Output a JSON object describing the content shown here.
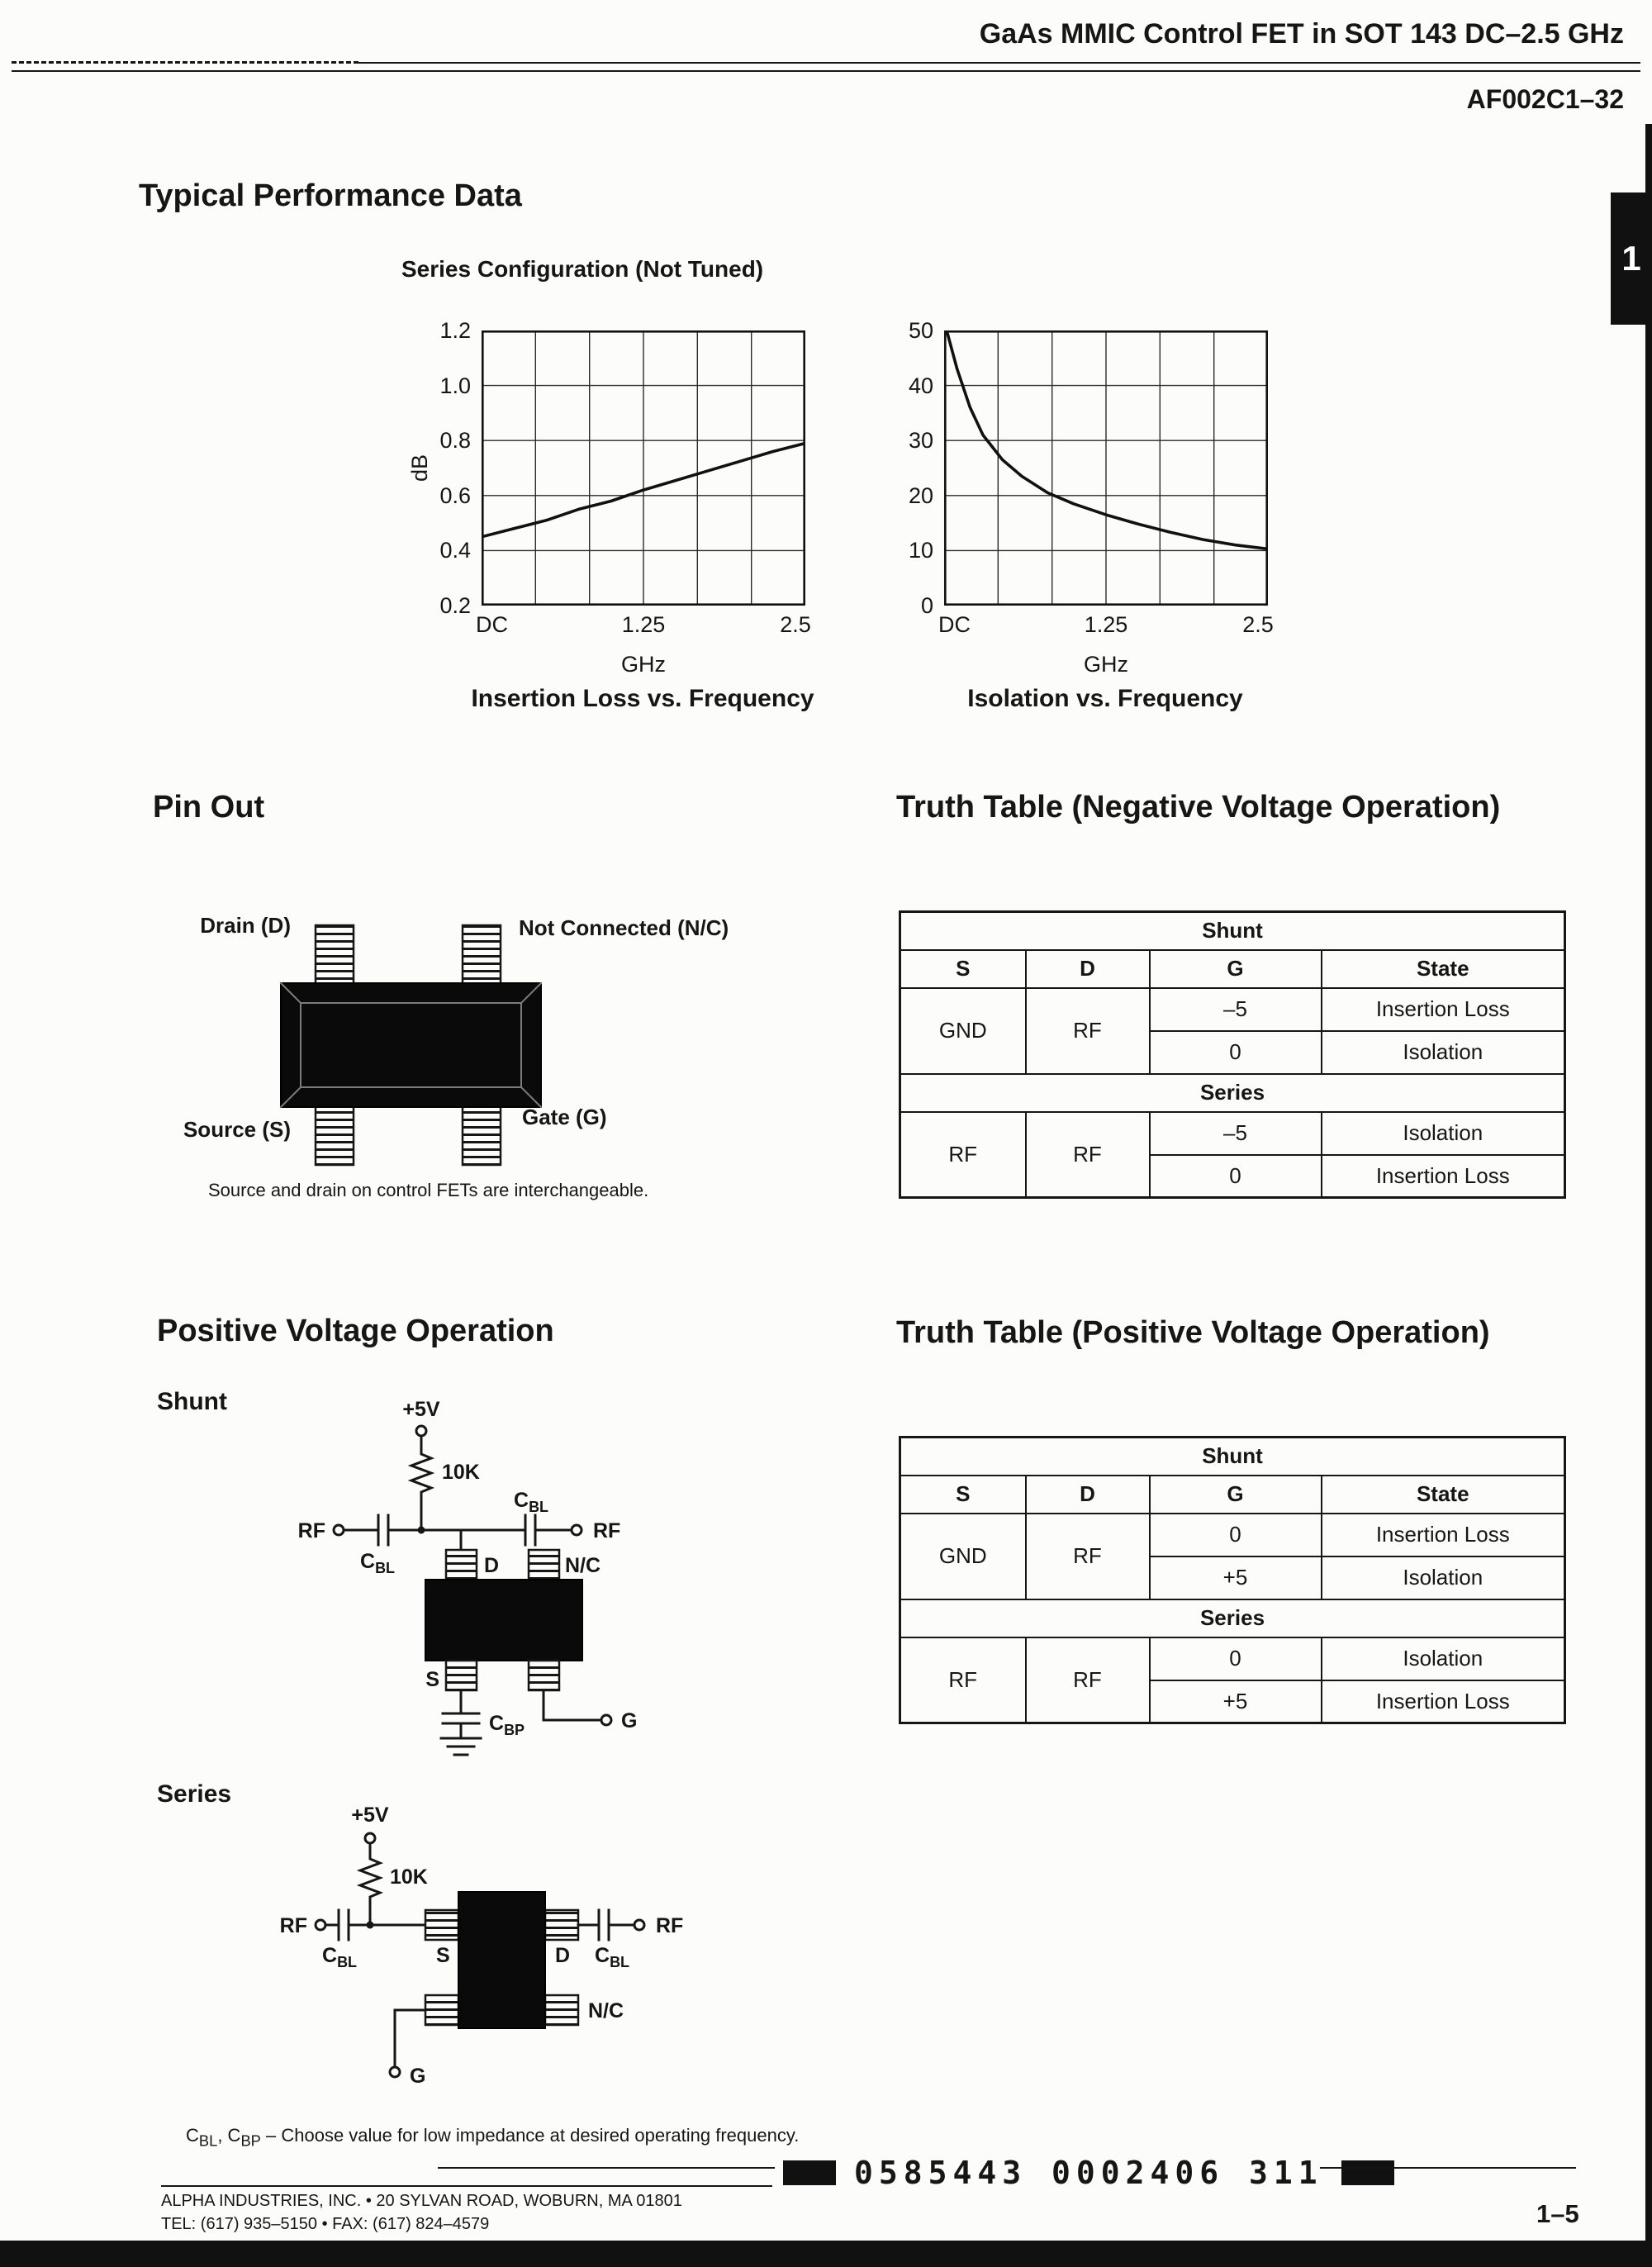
{
  "header": {
    "title": "GaAs MMIC Control FET in SOT 143 DC–2.5 GHz",
    "part_number": "AF002C1–32",
    "tab_label": "1"
  },
  "performance": {
    "title": "Typical Performance Data",
    "subtitle": "Series Configuration (Not Tuned)"
  },
  "chart_data": [
    {
      "type": "line",
      "title": "Insertion Loss vs. Frequency",
      "xlabel": "GHz",
      "ylabel": "dB",
      "x_ticks": [
        "DC",
        "1.25",
        "2.5"
      ],
      "y_ticks": [
        "0.2",
        "0.4",
        "0.6",
        "0.8",
        "1.0",
        "1.2"
      ],
      "xlim": [
        0,
        2.5
      ],
      "ylim": [
        0.2,
        1.2
      ],
      "grid_cols": 6,
      "grid_rows": 5,
      "grid": true,
      "legend": false,
      "x": [
        0,
        0.25,
        0.5,
        0.75,
        1.0,
        1.25,
        1.5,
        1.75,
        2.0,
        2.25,
        2.5
      ],
      "y": [
        0.45,
        0.48,
        0.51,
        0.55,
        0.58,
        0.62,
        0.655,
        0.69,
        0.725,
        0.76,
        0.79
      ]
    },
    {
      "type": "line",
      "title": "Isolation vs. Frequency",
      "xlabel": "GHz",
      "ylabel": "",
      "x_ticks": [
        "DC",
        "1.25",
        "2.5"
      ],
      "y_ticks": [
        "0",
        "10",
        "20",
        "30",
        "40",
        "50"
      ],
      "xlim": [
        0,
        2.5
      ],
      "ylim": [
        0,
        50
      ],
      "grid_cols": 6,
      "grid_rows": 5,
      "grid": true,
      "legend": false,
      "x": [
        0.02,
        0.1,
        0.2,
        0.3,
        0.45,
        0.6,
        0.8,
        1.0,
        1.25,
        1.5,
        1.75,
        2.0,
        2.25,
        2.5
      ],
      "y": [
        50,
        43,
        36,
        31,
        26.5,
        23.5,
        20.5,
        18.5,
        16.5,
        14.8,
        13.3,
        12,
        11,
        10.3
      ]
    }
  ],
  "pinout": {
    "title": "Pin Out",
    "drain_label": "Drain (D)",
    "nc_label": "Not Connected (N/C)",
    "source_label": "Source (S)",
    "gate_label": "Gate (G)",
    "note": "Source and drain on control FETs are interchangeable."
  },
  "truth_table_negative": {
    "title": "Truth Table (Negative Voltage Operation)",
    "columns": [
      "S",
      "D",
      "G",
      "State"
    ],
    "sections": [
      {
        "name": "Shunt",
        "s": "GND",
        "d": "RF",
        "rows": [
          {
            "g": "–5",
            "state": "Insertion Loss"
          },
          {
            "g": "0",
            "state": "Isolation"
          }
        ]
      },
      {
        "name": "Series",
        "s": "RF",
        "d": "RF",
        "rows": [
          {
            "g": "–5",
            "state": "Isolation"
          },
          {
            "g": "0",
            "state": "Insertion Loss"
          }
        ]
      }
    ]
  },
  "positive": {
    "title": "Positive Voltage Operation",
    "shunt_label": "Shunt",
    "series_label": "Series",
    "shunt_circuit": {
      "supply": "+5V",
      "resistor": "10K",
      "rf_in": "RF",
      "rf_out": "RF",
      "cap_c": "C",
      "cap_bl_sub": "BL",
      "cap_bp_sub": "BP",
      "drain": "D",
      "nc": "N/C",
      "source": "S",
      "gate": "G"
    },
    "series_circuit": {
      "supply": "+5V",
      "resistor": "10K",
      "rf_in": "RF",
      "rf_out": "RF",
      "cap_c": "C",
      "cap_bl_sub": "BL",
      "source": "S",
      "drain": "D",
      "nc": "N/C",
      "gate": "G"
    },
    "note": {
      "c1": "C",
      "sub1": "BL",
      "mid": ", C",
      "sub2": "BP",
      "text": " – Choose value for low impedance at desired operating frequency."
    }
  },
  "truth_table_positive": {
    "title": "Truth Table (Positive Voltage Operation)",
    "columns": [
      "S",
      "D",
      "G",
      "State"
    ],
    "sections": [
      {
        "name": "Shunt",
        "s": "GND",
        "d": "RF",
        "rows": [
          {
            "g": "0",
            "state": "Insertion Loss"
          },
          {
            "g": "+5",
            "state": "Isolation"
          }
        ]
      },
      {
        "name": "Series",
        "s": "RF",
        "d": "RF",
        "rows": [
          {
            "g": "0",
            "state": "Isolation"
          },
          {
            "g": "+5",
            "state": "Insertion Loss"
          }
        ]
      }
    ]
  },
  "footer": {
    "address": "ALPHA INDUSTRIES, INC. • 20 SYLVAN ROAD, WOBURN, MA 01801",
    "phone": "TEL: (617) 935–5150 • FAX: (617) 824–4579",
    "barcode": "0585443 0002406 311",
    "page": "1–5"
  }
}
